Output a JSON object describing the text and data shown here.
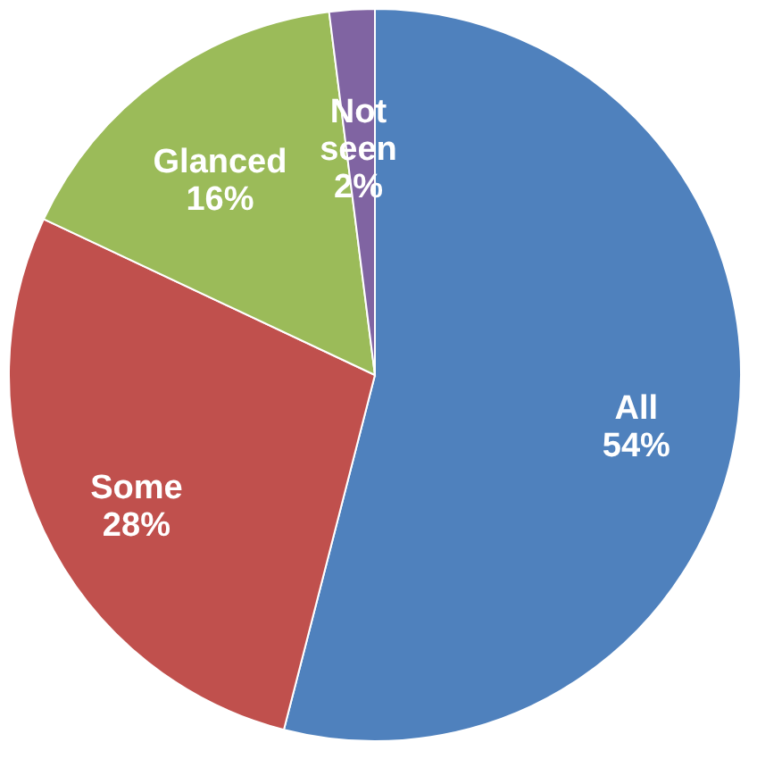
{
  "chart_data": {
    "type": "pie",
    "categories": [
      "All",
      "Some",
      "Glanced",
      "Not seen"
    ],
    "values": [
      54,
      28,
      16,
      2
    ],
    "colors": [
      "#4f81bd",
      "#c0504d",
      "#9bbb59",
      "#8064a2"
    ],
    "value_labels": [
      "54%",
      "28%",
      "16%",
      "2%"
    ],
    "legend": false
  }
}
